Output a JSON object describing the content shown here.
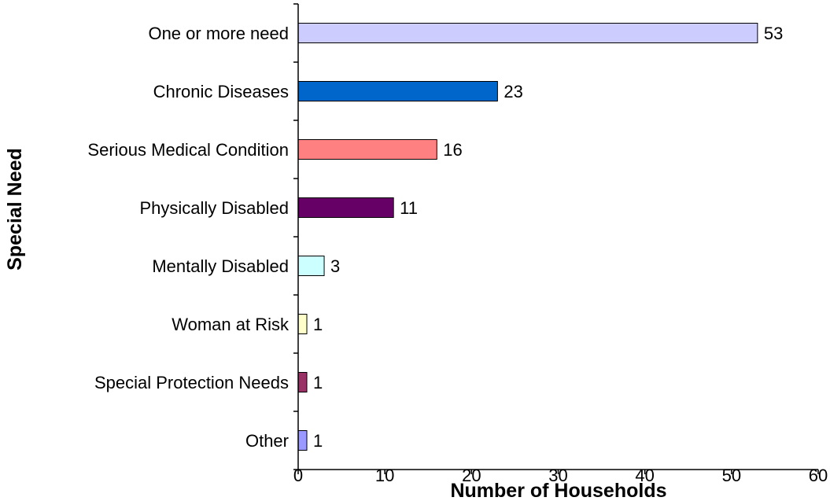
{
  "chart_data": {
    "type": "bar",
    "orientation": "horizontal",
    "title": "",
    "xlabel": "Number of Households",
    "ylabel": "Special Need",
    "categories": [
      "One or more need",
      "Chronic Diseases",
      "Serious Medical Condition",
      "Physically Disabled",
      "Mentally Disabled",
      "Woman at Risk",
      "Special Protection Needs",
      "Other"
    ],
    "values": [
      53,
      23,
      16,
      11,
      3,
      1,
      1,
      1
    ],
    "data_labels": [
      "53",
      "23",
      "16",
      "11",
      "3",
      "1",
      "1",
      "1"
    ],
    "bar_colors": [
      "#ccccff",
      "#0066cc",
      "#ff8080",
      "#660066",
      "#ccffff",
      "#ffffcc",
      "#993366",
      "#9999ff"
    ],
    "xlim": [
      0,
      60
    ],
    "xticks": [
      0,
      10,
      20,
      30,
      40,
      50,
      60
    ],
    "xtick_labels": [
      "0",
      "10",
      "20",
      "30",
      "40",
      "50",
      "60"
    ],
    "grid": false,
    "legend": "none"
  }
}
